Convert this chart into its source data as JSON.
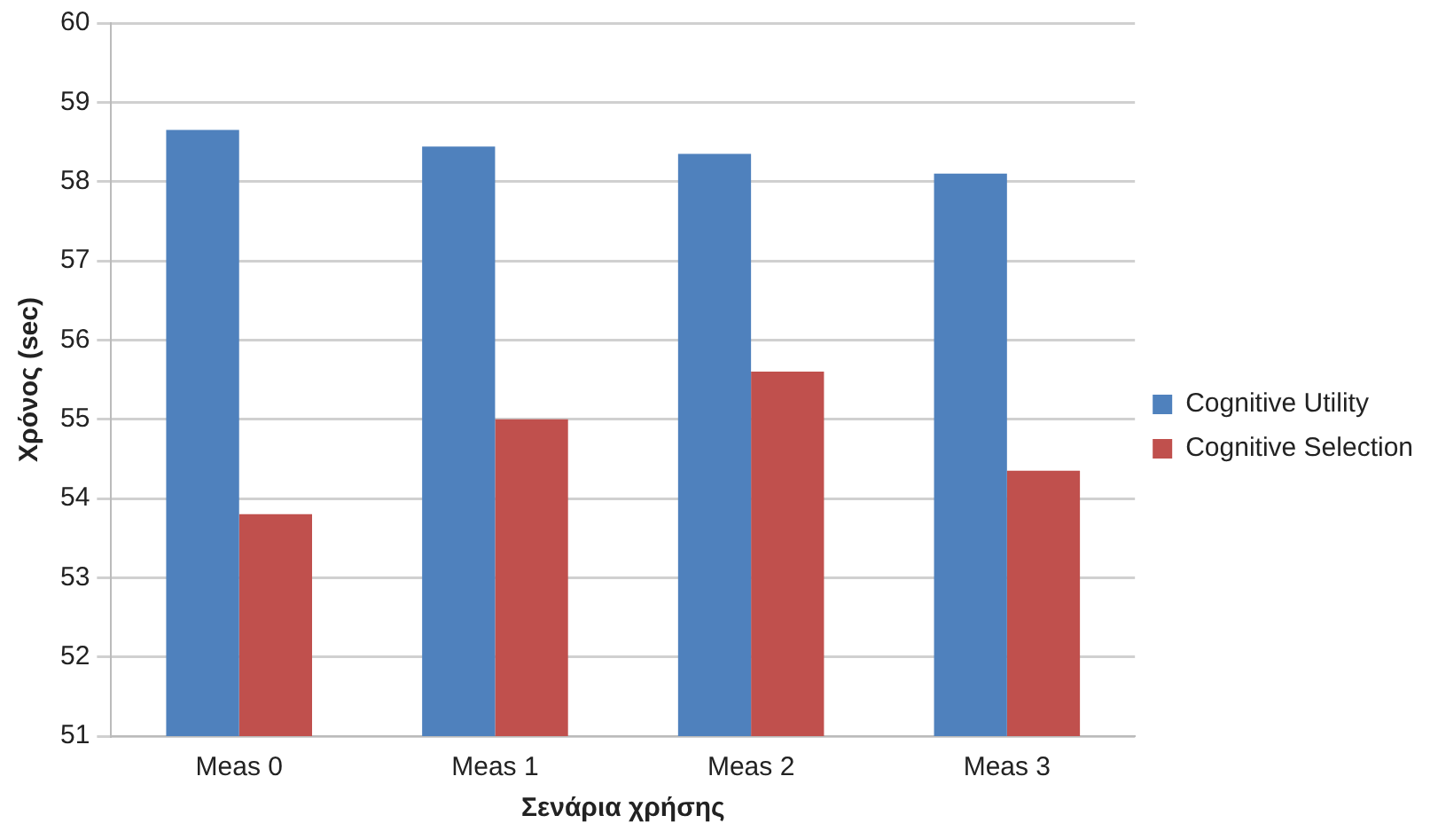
{
  "chart_data": {
    "type": "bar",
    "xlabel": "Σενάρια χρήσης",
    "ylabel": "Χρόνος (sec)",
    "categories": [
      "Meas 0",
      "Meas 1",
      "Meas 2",
      "Meas 3"
    ],
    "series": [
      {
        "name": "Cognitive Utility",
        "color": "#4f81bd",
        "values": [
          58.65,
          58.44,
          58.35,
          58.1
        ]
      },
      {
        "name": "Cognitive Selection",
        "color": "#c0504d",
        "values": [
          53.8,
          55.0,
          55.6,
          54.35
        ]
      }
    ],
    "ylim": [
      51,
      60
    ],
    "yticks": [
      51,
      52,
      53,
      54,
      55,
      56,
      57,
      58,
      59,
      60
    ],
    "grid": "y",
    "legend": "right"
  }
}
